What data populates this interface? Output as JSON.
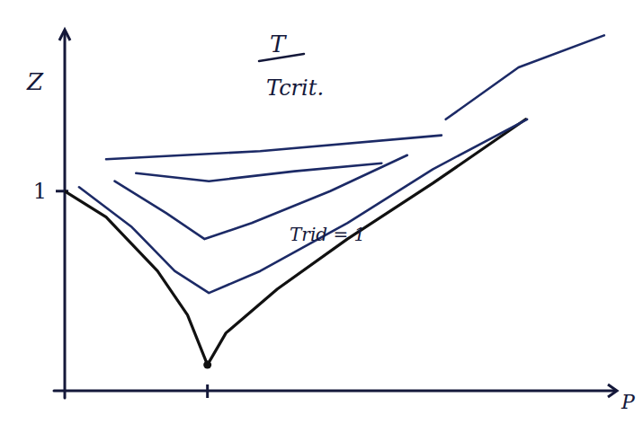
{
  "chart_data": {
    "type": "line",
    "x_label": "P",
    "y_label": "Z",
    "xlim": [
      0,
      3.8
    ],
    "ylim": [
      0,
      1.8
    ],
    "xticks": [
      1
    ],
    "yticks": [
      1
    ],
    "tick_labels": "y",
    "grid": false,
    "series": [
      {
        "color": "#111111",
        "x": [
          0,
          0.29,
          0.65,
          0.86,
          1.0,
          1.13,
          1.49,
          1.98,
          2.58,
          3.23
        ],
        "values": [
          1.0,
          0.87,
          0.6,
          0.38,
          0.13,
          0.29,
          0.51,
          0.76,
          1.04,
          1.36
        ]
      },
      {
        "color": "#1c2a66",
        "x": [
          0.1,
          0.47,
          0.77,
          1.01,
          1.37,
          1.98,
          2.58,
          3.24
        ],
        "values": [
          1.02,
          0.82,
          0.6,
          0.49,
          0.6,
          0.84,
          1.11,
          1.36
        ]
      },
      {
        "color": "#1c2a66",
        "x": [
          0.35,
          0.71,
          0.98,
          1.31,
          1.86,
          2.4
        ],
        "values": [
          1.05,
          0.89,
          0.76,
          0.84,
          1.0,
          1.18
        ]
      },
      {
        "color": "#1c2a66",
        "x": [
          0.5,
          1.01,
          1.61,
          2.22
        ],
        "values": [
          1.09,
          1.05,
          1.1,
          1.14
        ]
      },
      {
        "color": "#1c2a66",
        "x": [
          0.29,
          1.37,
          2.64
        ],
        "values": [
          1.16,
          1.2,
          1.28
        ]
      },
      {
        "color": "#1c2a66",
        "x": [
          2.67,
          3.18,
          3.78
        ],
        "values": [
          1.36,
          1.62,
          1.78
        ]
      }
    ],
    "annotations": [
      {
        "text": "T"
      },
      {
        "text": "Tcrit."
      },
      {
        "text": "Trid = 1"
      }
    ]
  }
}
